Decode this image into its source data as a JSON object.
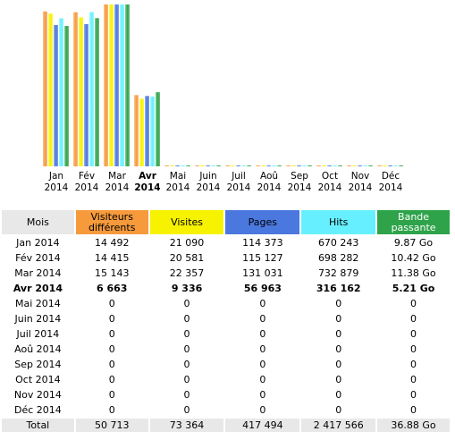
{
  "colors": {
    "visitors": "#f69a3c",
    "visits": "#f7f200",
    "pages": "#4a78de",
    "hits": "#66f0ff",
    "bandwidth": "#2ea34a",
    "header_bg": "#e8e8e8"
  },
  "chart_data": {
    "type": "bar",
    "categories": [
      "Jan 2014",
      "Fév 2014",
      "Mar 2014",
      "Avr 2014",
      "Mai 2014",
      "Juin 2014",
      "Juil 2014",
      "Aoû 2014",
      "Sep 2014",
      "Oct 2014",
      "Nov 2014",
      "Déc 2014"
    ],
    "series": [
      {
        "name": "Visiteurs différents",
        "values": [
          14492,
          14415,
          15143,
          6663,
          0,
          0,
          0,
          0,
          0,
          0,
          0,
          0
        ]
      },
      {
        "name": "Visites",
        "values": [
          21090,
          20581,
          22357,
          9336,
          0,
          0,
          0,
          0,
          0,
          0,
          0,
          0
        ]
      },
      {
        "name": "Pages",
        "values": [
          114373,
          115127,
          131031,
          56963,
          0,
          0,
          0,
          0,
          0,
          0,
          0,
          0
        ]
      },
      {
        "name": "Hits",
        "values": [
          670243,
          698282,
          732879,
          316162,
          0,
          0,
          0,
          0,
          0,
          0,
          0,
          0
        ]
      },
      {
        "name": "Bande passante (Go)",
        "values": [
          9.87,
          10.42,
          11.38,
          5.21,
          0,
          0,
          0,
          0,
          0,
          0,
          0,
          0
        ]
      }
    ]
  },
  "months": [
    {
      "m": "Jan",
      "y": "2014"
    },
    {
      "m": "Fév",
      "y": "2014"
    },
    {
      "m": "Mar",
      "y": "2014"
    },
    {
      "m": "Avr",
      "y": "2014",
      "current": true
    },
    {
      "m": "Mai",
      "y": "2014"
    },
    {
      "m": "Juin",
      "y": "2014"
    },
    {
      "m": "Juil",
      "y": "2014"
    },
    {
      "m": "Aoû",
      "y": "2014"
    },
    {
      "m": "Sep",
      "y": "2014"
    },
    {
      "m": "Oct",
      "y": "2014"
    },
    {
      "m": "Nov",
      "y": "2014"
    },
    {
      "m": "Déc",
      "y": "2014"
    }
  ],
  "table": {
    "headers": {
      "month": "Mois",
      "visitors": "Visiteurs différents",
      "visits": "Visites",
      "pages": "Pages",
      "hits": "Hits",
      "bandwidth": "Bande passante"
    },
    "rows": [
      {
        "month": "Jan 2014",
        "visitors": "14 492",
        "visits": "21 090",
        "pages": "114 373",
        "hits": "670 243",
        "bandwidth": "9.87 Go"
      },
      {
        "month": "Fév 2014",
        "visitors": "14 415",
        "visits": "20 581",
        "pages": "115 127",
        "hits": "698 282",
        "bandwidth": "10.42 Go"
      },
      {
        "month": "Mar 2014",
        "visitors": "15 143",
        "visits": "22 357",
        "pages": "131 031",
        "hits": "732 879",
        "bandwidth": "11.38 Go"
      },
      {
        "month": "Avr 2014",
        "visitors": "6 663",
        "visits": "9 336",
        "pages": "56 963",
        "hits": "316 162",
        "bandwidth": "5.21 Go",
        "current": true
      },
      {
        "month": "Mai 2014",
        "visitors": "0",
        "visits": "0",
        "pages": "0",
        "hits": "0",
        "bandwidth": "0"
      },
      {
        "month": "Juin 2014",
        "visitors": "0",
        "visits": "0",
        "pages": "0",
        "hits": "0",
        "bandwidth": "0"
      },
      {
        "month": "Juil 2014",
        "visitors": "0",
        "visits": "0",
        "pages": "0",
        "hits": "0",
        "bandwidth": "0"
      },
      {
        "month": "Aoû 2014",
        "visitors": "0",
        "visits": "0",
        "pages": "0",
        "hits": "0",
        "bandwidth": "0"
      },
      {
        "month": "Sep 2014",
        "visitors": "0",
        "visits": "0",
        "pages": "0",
        "hits": "0",
        "bandwidth": "0"
      },
      {
        "month": "Oct 2014",
        "visitors": "0",
        "visits": "0",
        "pages": "0",
        "hits": "0",
        "bandwidth": "0"
      },
      {
        "month": "Nov 2014",
        "visitors": "0",
        "visits": "0",
        "pages": "0",
        "hits": "0",
        "bandwidth": "0"
      },
      {
        "month": "Déc 2014",
        "visitors": "0",
        "visits": "0",
        "pages": "0",
        "hits": "0",
        "bandwidth": "0"
      }
    ],
    "total": {
      "label": "Total",
      "visitors": "50 713",
      "visits": "73 364",
      "pages": "417 494",
      "hits": "2 417 566",
      "bandwidth": "36.88 Go"
    }
  }
}
